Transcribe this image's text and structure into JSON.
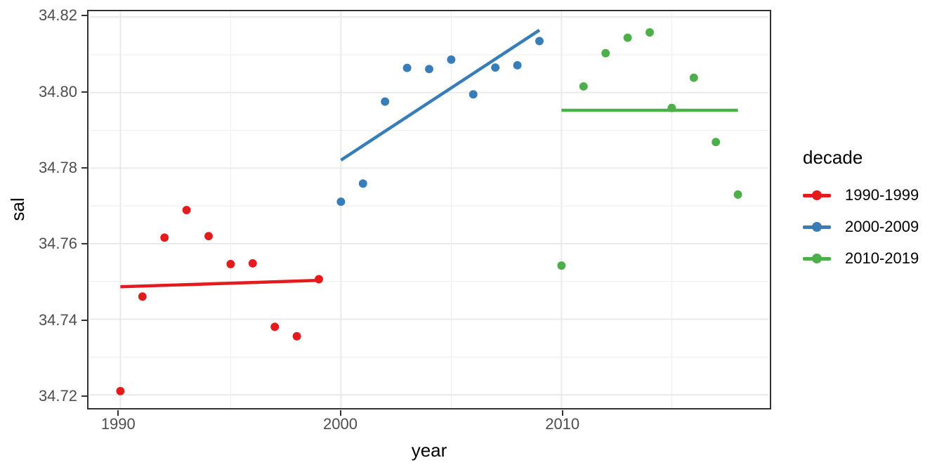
{
  "style": {
    "background": "#ffffff",
    "panel_border_color": "#333333",
    "grid_major_color": "#e9e9e9",
    "grid_minor_color": "#f0f0f0",
    "tick_color": "#333333",
    "axis_text_color": "#4d4d4d",
    "title_text_color": "#000000"
  },
  "chart_data": {
    "type": "scatter",
    "title": "",
    "xlabel": "year",
    "ylabel": "sal",
    "legend_title": "decade",
    "legend_position": "right",
    "grid": true,
    "xlim": [
      1988.6,
      2019.4
    ],
    "ylim": [
      34.7165,
      34.8215
    ],
    "x_ticks": [
      {
        "value": 1990,
        "label": "1990"
      },
      {
        "value": 2000,
        "label": "2000"
      },
      {
        "value": 2010,
        "label": "2010"
      }
    ],
    "x_minor_gridlines": [
      1995,
      2005,
      2015
    ],
    "y_ticks": [
      {
        "value": 34.72,
        "label": "34.72"
      },
      {
        "value": 34.74,
        "label": "34.74"
      },
      {
        "value": 34.76,
        "label": "34.76"
      },
      {
        "value": 34.78,
        "label": "34.78"
      },
      {
        "value": 34.8,
        "label": "34.80"
      },
      {
        "value": 34.82,
        "label": "34.82"
      }
    ],
    "y_minor_gridlines": [
      34.73,
      34.75,
      34.77,
      34.79,
      34.81
    ],
    "series": [
      {
        "name": "1990-1999",
        "color": "#e41a1c",
        "x": [
          1990,
          1991,
          1992,
          1993,
          1994,
          1995,
          1996,
          1997,
          1998,
          1999
        ],
        "y": [
          34.721,
          34.746,
          34.7616,
          34.7689,
          34.762,
          34.7546,
          34.7548,
          34.738,
          34.7355,
          34.7506
        ],
        "trend": {
          "x1": 1990,
          "y1": 34.7486,
          "x2": 1999,
          "y2": 34.7503
        }
      },
      {
        "name": "2000-2009",
        "color": "#377eb8",
        "x": [
          2000,
          2001,
          2002,
          2003,
          2004,
          2005,
          2006,
          2007,
          2008,
          2009
        ],
        "y": [
          34.7711,
          34.7759,
          34.7976,
          34.8065,
          34.8062,
          34.8087,
          34.7995,
          34.8066,
          34.8072,
          34.8136
        ],
        "trend": {
          "x1": 2000,
          "y1": 34.7821,
          "x2": 2009,
          "y2": 34.8165
        }
      },
      {
        "name": "2010-2019",
        "color": "#4daf4a",
        "x": [
          2010,
          2011,
          2012,
          2013,
          2014,
          2015,
          2016,
          2017,
          2018
        ],
        "y": [
          34.7542,
          34.8016,
          34.8104,
          34.8145,
          34.8159,
          34.7959,
          34.8039,
          34.7869,
          34.773
        ],
        "trend": {
          "x1": 2010,
          "y1": 34.7953,
          "x2": 2018,
          "y2": 34.7953
        }
      }
    ]
  }
}
